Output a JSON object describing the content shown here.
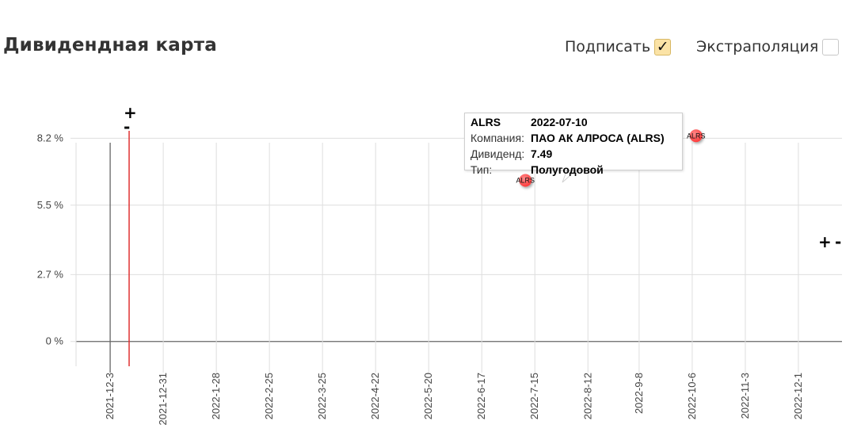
{
  "header": {
    "title": "Дивидендная карта",
    "sign_label": "Подписать",
    "sign_checked": true,
    "extrapolation_label": "Экстраполяция",
    "extrapolation_checked": false
  },
  "zoom": {
    "plus": "+",
    "minus": "-"
  },
  "tooltip": {
    "ticker": "ALRS",
    "date": "2022-07-10",
    "company_label": "Компания:",
    "company": "ПАО АК АЛРОСА (ALRS)",
    "dividend_label": "Дивиденд:",
    "dividend": "7.49",
    "type_label": "Тип:",
    "type": "Полугодовой"
  },
  "chart_data": {
    "type": "scatter",
    "x_type": "date",
    "xlim": [
      "2021-11-15",
      "2022-12-24"
    ],
    "ylim": [
      -1.0,
      8.5
    ],
    "y_ticks": [
      0,
      2.7,
      5.5,
      8.2
    ],
    "y_tick_labels": [
      "0 %",
      "2.7 %",
      "5.5 %",
      "8.2 %"
    ],
    "x_ticks": [
      "2021-12-03",
      "2021-12-31",
      "2022-01-28",
      "2022-02-25",
      "2022-03-25",
      "2022-04-22",
      "2022-05-20",
      "2022-06-17",
      "2022-07-15",
      "2022-08-12",
      "2022-09-08",
      "2022-10-06",
      "2022-11-03",
      "2022-12-01"
    ],
    "x_tick_labels": [
      "2021-12-3",
      "2021-12-31",
      "2022-1-28",
      "2022-2-25",
      "2022-3-25",
      "2022-4-22",
      "2022-5-20",
      "2022-6-17",
      "2022-7-15",
      "2022-8-12",
      "2022-9-8",
      "2022-10-6",
      "2022-11-3",
      "2022-12-1"
    ],
    "today_marker": "2021-12-13",
    "points": [
      {
        "label": "ALRS",
        "date": "2022-07-10",
        "y": 6.5
      },
      {
        "label": "ALRS",
        "date": "2022-10-08",
        "y": 8.3
      }
    ],
    "grid": true,
    "colors": {
      "point": "#ff3b3b",
      "today_line": "#e03030",
      "grid": "#dedede",
      "axis": "#666666"
    }
  }
}
